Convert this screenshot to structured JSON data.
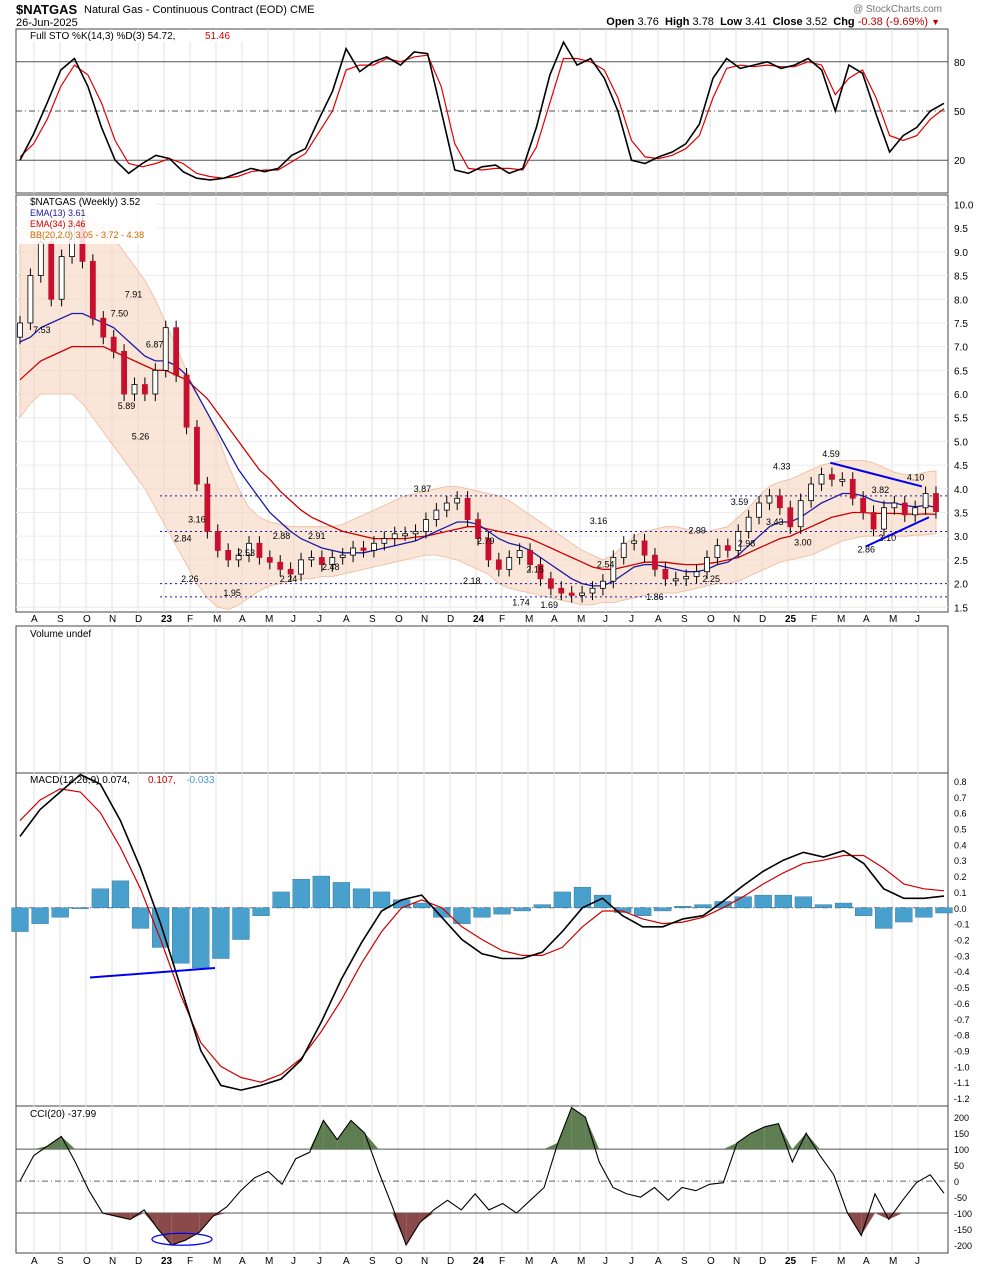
{
  "header": {
    "symbol": "$NATGAS",
    "description": "Natural Gas - Continuous Contract (EOD)",
    "exchange": "CME",
    "date": "26-Jun-2025",
    "open_label": "Open",
    "open": "3.76",
    "high_label": "High",
    "high": "3.78",
    "low_label": "Low",
    "low": "3.41",
    "close_label": "Close",
    "close": "3.52",
    "chg_label": "Chg",
    "chg": "-0.38 (-9.69%)",
    "watermark": "@ StockCharts.com"
  },
  "colors": {
    "up": "#ffffff",
    "down": "#c8102e",
    "stoch_k": "#000000",
    "stoch_d": "#e00000",
    "ema13": "#1a1aa6",
    "ema34": "#cc0000",
    "bb_fill": "#f7d5c0",
    "hist": "#4aa0cc",
    "cci_pos": "#5e7d50",
    "cci_neg": "#8a4a4a",
    "trendline": "#0000ee"
  },
  "chart_data": [
    {
      "type": "line",
      "panel": "stochastics",
      "title": "Full STO %K(14,3) %D(3) 54.72, 51.46",
      "legend": [
        {
          "text": "Full STO %K(14,3) %D(3) 54.72,",
          "color": "#000000"
        },
        {
          "text": "51.46",
          "color": "#e00000"
        }
      ],
      "ylim": [
        0,
        100
      ],
      "yticks": [
        20,
        50,
        80
      ],
      "series": [
        {
          "name": "%K",
          "values": [
            20,
            36,
            55,
            75,
            82,
            65,
            40,
            20,
            12,
            18,
            23,
            21,
            13,
            9,
            8,
            9,
            12,
            15,
            13,
            15,
            23,
            27,
            45,
            62,
            88,
            74,
            80,
            83,
            78,
            86,
            85,
            50,
            14,
            12,
            16,
            17,
            12,
            15,
            40,
            72,
            92,
            78,
            82,
            70,
            50,
            20,
            18,
            22,
            25,
            30,
            42,
            70,
            82,
            76,
            78,
            80,
            76,
            78,
            82,
            75,
            50,
            78,
            73,
            48,
            25,
            35,
            40,
            50,
            54.72
          ]
        },
        {
          "name": "%D",
          "values": [
            22,
            30,
            45,
            65,
            78,
            72,
            55,
            32,
            18,
            16,
            18,
            21,
            18,
            12,
            10,
            9,
            10,
            13,
            14,
            14,
            19,
            24,
            37,
            50,
            75,
            78,
            78,
            82,
            80,
            83,
            84,
            65,
            30,
            15,
            14,
            15,
            15,
            14,
            28,
            55,
            82,
            82,
            80,
            75,
            58,
            32,
            22,
            21,
            23,
            27,
            35,
            58,
            76,
            78,
            77,
            78,
            77,
            77,
            80,
            78,
            60,
            70,
            75,
            58,
            35,
            32,
            35,
            45,
            51.46
          ]
        }
      ]
    },
    {
      "type": "candlestick",
      "panel": "price",
      "title": "$NATGAS (Weekly) 3.52",
      "legend": [
        {
          "text": "$NATGAS (Weekly) 3.52",
          "color": "#000000"
        },
        {
          "text": "EMA(13) 3.61",
          "color": "#1a1aa6"
        },
        {
          "text": "EMA(34) 3.46",
          "color": "#cc0000"
        },
        {
          "text": "BB(20,2.0) 3.05 - 3.72 - 4.38",
          "color": "#cc6600"
        }
      ],
      "ylim": [
        1.4,
        10.2
      ],
      "yticks": [
        "1.5",
        "2.0",
        "2.5",
        "3.0",
        "3.5",
        "4.0",
        "4.5",
        "5.0",
        "5.5",
        "6.0",
        "6.5",
        "7.0",
        "7.5",
        "8.0",
        "8.5",
        "9.0",
        "9.5",
        "10.0"
      ],
      "x_labels": [
        "A",
        "S",
        "O",
        "N",
        "D",
        "23",
        "F",
        "M",
        "A",
        "M",
        "J",
        "J",
        "A",
        "S",
        "O",
        "N",
        "D",
        "24",
        "F",
        "M",
        "A",
        "M",
        "J",
        "J",
        "A",
        "S",
        "O",
        "N",
        "D",
        "25",
        "F",
        "M",
        "A",
        "M",
        "J"
      ],
      "close": [
        7.5,
        8.5,
        9.2,
        8.0,
        8.9,
        9.6,
        8.8,
        7.6,
        7.2,
        6.9,
        6.0,
        6.2,
        6.0,
        6.5,
        7.4,
        6.4,
        5.3,
        4.1,
        3.1,
        2.7,
        2.5,
        2.6,
        2.85,
        2.55,
        2.45,
        2.3,
        2.2,
        2.5,
        2.55,
        2.4,
        2.55,
        2.6,
        2.75,
        2.7,
        2.85,
        2.95,
        3.05,
        3.05,
        3.1,
        3.35,
        3.55,
        3.7,
        3.8,
        3.35,
        2.95,
        2.5,
        2.3,
        2.55,
        2.7,
        2.4,
        2.1,
        1.9,
        1.8,
        1.75,
        1.8,
        1.9,
        2.05,
        2.55,
        2.85,
        2.9,
        2.6,
        2.3,
        2.1,
        2.1,
        2.15,
        2.25,
        2.55,
        2.8,
        2.7,
        3.1,
        3.4,
        3.7,
        3.85,
        3.6,
        3.2,
        3.75,
        4.1,
        4.3,
        4.2,
        4.2,
        3.8,
        3.5,
        3.15,
        3.6,
        3.7,
        3.45,
        3.6,
        3.9,
        3.52
      ],
      "ema13": [
        7.1,
        7.2,
        7.4,
        7.5,
        7.6,
        7.7,
        7.7,
        7.6,
        7.5,
        7.4,
        7.2,
        7.0,
        6.8,
        6.7,
        6.7,
        6.6,
        6.4,
        6.0,
        5.6,
        5.2,
        4.8,
        4.4,
        4.1,
        3.8,
        3.5,
        3.3,
        3.1,
        2.95,
        2.85,
        2.75,
        2.7,
        2.65,
        2.65,
        2.65,
        2.7,
        2.75,
        2.8,
        2.85,
        2.9,
        3.0,
        3.1,
        3.2,
        3.3,
        3.3,
        3.25,
        3.1,
        2.95,
        2.85,
        2.8,
        2.7,
        2.55,
        2.4,
        2.25,
        2.1,
        2.0,
        1.95,
        1.95,
        2.05,
        2.2,
        2.35,
        2.4,
        2.4,
        2.35,
        2.3,
        2.25,
        2.25,
        2.3,
        2.4,
        2.45,
        2.6,
        2.8,
        3.0,
        3.2,
        3.3,
        3.3,
        3.4,
        3.55,
        3.7,
        3.8,
        3.9,
        3.9,
        3.85,
        3.75,
        3.7,
        3.7,
        3.65,
        3.62,
        3.65,
        3.61
      ],
      "ema34": [
        6.3,
        6.5,
        6.7,
        6.8,
        6.9,
        7.0,
        7.0,
        7.0,
        7.0,
        6.9,
        6.8,
        6.7,
        6.6,
        6.5,
        6.5,
        6.4,
        6.3,
        6.1,
        5.9,
        5.6,
        5.3,
        5.0,
        4.7,
        4.4,
        4.2,
        3.95,
        3.75,
        3.55,
        3.4,
        3.3,
        3.2,
        3.1,
        3.05,
        3.0,
        2.95,
        2.95,
        2.95,
        2.95,
        2.98,
        3.0,
        3.05,
        3.1,
        3.15,
        3.2,
        3.2,
        3.15,
        3.1,
        3.05,
        3.0,
        2.95,
        2.85,
        2.75,
        2.65,
        2.55,
        2.45,
        2.35,
        2.3,
        2.3,
        2.35,
        2.4,
        2.45,
        2.45,
        2.45,
        2.42,
        2.4,
        2.4,
        2.42,
        2.45,
        2.5,
        2.55,
        2.65,
        2.75,
        2.85,
        2.95,
        3.0,
        3.1,
        3.2,
        3.3,
        3.4,
        3.45,
        3.5,
        3.5,
        3.48,
        3.48,
        3.48,
        3.47,
        3.46,
        3.47,
        3.46
      ],
      "bb_upper": [
        9.5,
        9.7,
        9.9,
        9.9,
        9.9,
        9.9,
        9.8,
        9.7,
        9.5,
        9.3,
        9.0,
        8.7,
        8.4,
        8.0,
        7.5,
        7.0,
        6.5,
        6.0,
        5.6,
        5.1,
        4.5,
        4.0,
        3.6,
        3.4,
        3.3,
        3.25,
        3.2,
        3.2,
        3.2,
        3.2,
        3.2,
        3.25,
        3.35,
        3.45,
        3.55,
        3.65,
        3.75,
        3.85,
        3.9,
        3.95,
        4.0,
        4.05,
        4.05,
        4.0,
        3.95,
        3.9,
        3.85,
        3.75,
        3.6,
        3.45,
        3.3,
        3.15,
        3.0,
        2.85,
        2.7,
        2.6,
        2.5,
        2.6,
        2.8,
        3.0,
        3.1,
        3.15,
        3.2,
        3.2,
        3.15,
        3.1,
        3.1,
        3.15,
        3.2,
        3.4,
        3.6,
        3.85,
        4.05,
        4.15,
        4.2,
        4.3,
        4.4,
        4.5,
        4.55,
        4.6,
        4.6,
        4.6,
        4.55,
        4.45,
        4.35,
        4.3,
        4.3,
        4.35,
        4.38
      ],
      "bb_lower": [
        5.5,
        5.8,
        6.0,
        6.0,
        6.0,
        6.0,
        5.8,
        5.5,
        5.2,
        4.9,
        4.6,
        4.3,
        4.0,
        3.6,
        3.2,
        2.8,
        2.4,
        2.0,
        1.7,
        1.5,
        1.45,
        1.55,
        1.7,
        1.85,
        1.95,
        2.0,
        2.05,
        2.1,
        2.1,
        2.15,
        2.15,
        2.2,
        2.25,
        2.3,
        2.35,
        2.4,
        2.45,
        2.5,
        2.55,
        2.6,
        2.6,
        2.55,
        2.5,
        2.4,
        2.3,
        2.2,
        2.0,
        1.9,
        1.85,
        1.8,
        1.75,
        1.7,
        1.65,
        1.6,
        1.55,
        1.55,
        1.6,
        1.6,
        1.65,
        1.7,
        1.75,
        1.8,
        1.8,
        1.8,
        1.85,
        1.9,
        1.95,
        2.0,
        2.0,
        2.05,
        2.15,
        2.25,
        2.35,
        2.45,
        2.5,
        2.55,
        2.6,
        2.7,
        2.8,
        2.9,
        2.95,
        3.0,
        3.0,
        3.0,
        3.0,
        3.0,
        3.02,
        3.03,
        3.05
      ],
      "annotations": [
        {
          "text": "7.53",
          "x": 3,
          "y": 7.35
        },
        {
          "text": "7.91",
          "x": 16,
          "y": 8.1
        },
        {
          "text": "7.50",
          "x": 14,
          "y": 7.7
        },
        {
          "text": "6.87",
          "x": 19,
          "y": 7.05
        },
        {
          "text": "5.89",
          "x": 15,
          "y": 5.75
        },
        {
          "text": "5.26",
          "x": 17,
          "y": 5.1
        },
        {
          "text": "3.16",
          "x": 25,
          "y": 3.35
        },
        {
          "text": "2.84",
          "x": 23,
          "y": 2.95
        },
        {
          "text": "2.26",
          "x": 24,
          "y": 2.1
        },
        {
          "text": "2.53",
          "x": 32,
          "y": 2.65
        },
        {
          "text": "1.95",
          "x": 30,
          "y": 1.8
        },
        {
          "text": "2.88",
          "x": 37,
          "y": 3.0
        },
        {
          "text": "2.24",
          "x": 38,
          "y": 2.1
        },
        {
          "text": "2.91",
          "x": 42,
          "y": 3.0
        },
        {
          "text": "2.48",
          "x": 44,
          "y": 2.35
        },
        {
          "text": "3.87",
          "x": 57,
          "y": 4.0
        },
        {
          "text": "2.79",
          "x": 66,
          "y": 2.9
        },
        {
          "text": "2.18",
          "x": 64,
          "y": 2.05
        },
        {
          "text": "2.15",
          "x": 73,
          "y": 2.3
        },
        {
          "text": "1.74",
          "x": 71,
          "y": 1.6
        },
        {
          "text": "1.69",
          "x": 75,
          "y": 1.55
        },
        {
          "text": "3.16",
          "x": 82,
          "y": 3.32
        },
        {
          "text": "2.54",
          "x": 83,
          "y": 2.4
        },
        {
          "text": "1.86",
          "x": 90,
          "y": 1.72
        },
        {
          "text": "2.99",
          "x": 96,
          "y": 3.12
        },
        {
          "text": "2.25",
          "x": 98,
          "y": 2.1
        },
        {
          "text": "3.59",
          "x": 102,
          "y": 3.72
        },
        {
          "text": "2.98",
          "x": 103,
          "y": 2.85
        },
        {
          "text": "3.43",
          "x": 107,
          "y": 3.3
        },
        {
          "text": "4.33",
          "x": 108,
          "y": 4.47
        },
        {
          "text": "3.00",
          "x": 111,
          "y": 2.87
        },
        {
          "text": "4.59",
          "x": 115,
          "y": 4.73
        },
        {
          "text": "3.82",
          "x": 122,
          "y": 3.97
        },
        {
          "text": "2.86",
          "x": 120,
          "y": 2.72
        },
        {
          "text": "3.10",
          "x": 123,
          "y": 2.96
        },
        {
          "text": "4.10",
          "x": 127,
          "y": 4.24
        }
      ]
    },
    {
      "type": "bar",
      "panel": "volume",
      "title": "Volume undef",
      "legend": [
        {
          "text": "Volume undef",
          "color": "#000000"
        }
      ]
    },
    {
      "type": "line",
      "panel": "macd",
      "title": "MACD(12,26,9) 0.074, 0.107, -0.033",
      "legend": [
        {
          "text": "MACD(12,26,9) 0.074,",
          "color": "#000000"
        },
        {
          "text": "0.107,",
          "color": "#cc0000"
        },
        {
          "text": "-0.033",
          "color": "#4aa0cc"
        }
      ],
      "ylim": [
        -1.25,
        0.85
      ],
      "yticks": [
        "0.8",
        "0.7",
        "0.6",
        "0.5",
        "0.4",
        "0.3",
        "0.2",
        "0.1",
        "0.0",
        "-0.1",
        "-0.2",
        "-0.3",
        "-0.4",
        "-0.5",
        "-0.6",
        "-0.7",
        "-0.8",
        "-0.9",
        "-1.0",
        "-1.1",
        "-1.2"
      ],
      "series": [
        {
          "name": "MACD",
          "values": [
            0.45,
            0.62,
            0.73,
            0.84,
            0.78,
            0.55,
            0.25,
            -0.1,
            -0.5,
            -0.9,
            -1.12,
            -1.15,
            -1.12,
            -1.08,
            -0.96,
            -0.72,
            -0.45,
            -0.22,
            -0.02,
            0.05,
            0.08,
            -0.06,
            -0.2,
            -0.29,
            -0.32,
            -0.32,
            -0.28,
            -0.15,
            0.0,
            0.06,
            -0.05,
            -0.12,
            -0.12,
            -0.07,
            -0.05,
            0.04,
            0.14,
            0.23,
            0.3,
            0.35,
            0.32,
            0.36,
            0.28,
            0.12,
            0.06,
            0.06,
            0.074
          ]
        },
        {
          "name": "Signal",
          "values": [
            0.55,
            0.68,
            0.75,
            0.73,
            0.6,
            0.38,
            0.12,
            -0.2,
            -0.55,
            -0.85,
            -1.0,
            -1.07,
            -1.1,
            -1.05,
            -0.95,
            -0.78,
            -0.58,
            -0.35,
            -0.15,
            0.0,
            0.05,
            0.0,
            -0.12,
            -0.2,
            -0.27,
            -0.3,
            -0.3,
            -0.25,
            -0.12,
            -0.02,
            -0.02,
            -0.07,
            -0.1,
            -0.09,
            -0.06,
            0.0,
            0.07,
            0.15,
            0.22,
            0.28,
            0.3,
            0.33,
            0.33,
            0.25,
            0.15,
            0.12,
            0.107
          ]
        },
        {
          "name": "Histogram",
          "values": [
            -0.15,
            -0.1,
            -0.06,
            0.0,
            0.12,
            0.17,
            -0.13,
            -0.25,
            -0.35,
            -0.38,
            -0.32,
            -0.2,
            -0.05,
            0.1,
            0.18,
            0.2,
            0.16,
            0.12,
            0.1,
            0.05,
            0.03,
            -0.06,
            -0.1,
            -0.06,
            -0.04,
            -0.02,
            0.02,
            0.1,
            0.13,
            0.08,
            -0.03,
            -0.05,
            -0.02,
            0.01,
            0.02,
            0.04,
            0.07,
            0.08,
            0.08,
            0.07,
            0.02,
            0.03,
            -0.05,
            -0.13,
            -0.09,
            -0.06,
            -0.033
          ]
        }
      ]
    },
    {
      "type": "area",
      "panel": "cci",
      "title": "CCI(20) -37.99",
      "legend": [
        {
          "text": "CCI(20) -37.99",
          "color": "#000000"
        }
      ],
      "ylim": [
        -225,
        235
      ],
      "yticks": [
        "200",
        "150",
        "100",
        "50",
        "0",
        "-50",
        "-100",
        "-150",
        "-200"
      ],
      "values": [
        0,
        80,
        110,
        140,
        60,
        -30,
        -100,
        -110,
        -120,
        -90,
        -150,
        -200,
        -185,
        -160,
        -110,
        -80,
        -30,
        10,
        30,
        -10,
        70,
        90,
        190,
        130,
        190,
        150,
        30,
        -80,
        -200,
        -130,
        -90,
        -60,
        -90,
        -40,
        -90,
        -70,
        -100,
        -60,
        -20,
        120,
        230,
        200,
        60,
        -20,
        -40,
        -50,
        -20,
        -60,
        -20,
        -30,
        -10,
        -5,
        120,
        150,
        170,
        180,
        60,
        150,
        80,
        20,
        -100,
        -170,
        -40,
        -120,
        -60,
        -5,
        20,
        -37.99
      ]
    }
  ]
}
